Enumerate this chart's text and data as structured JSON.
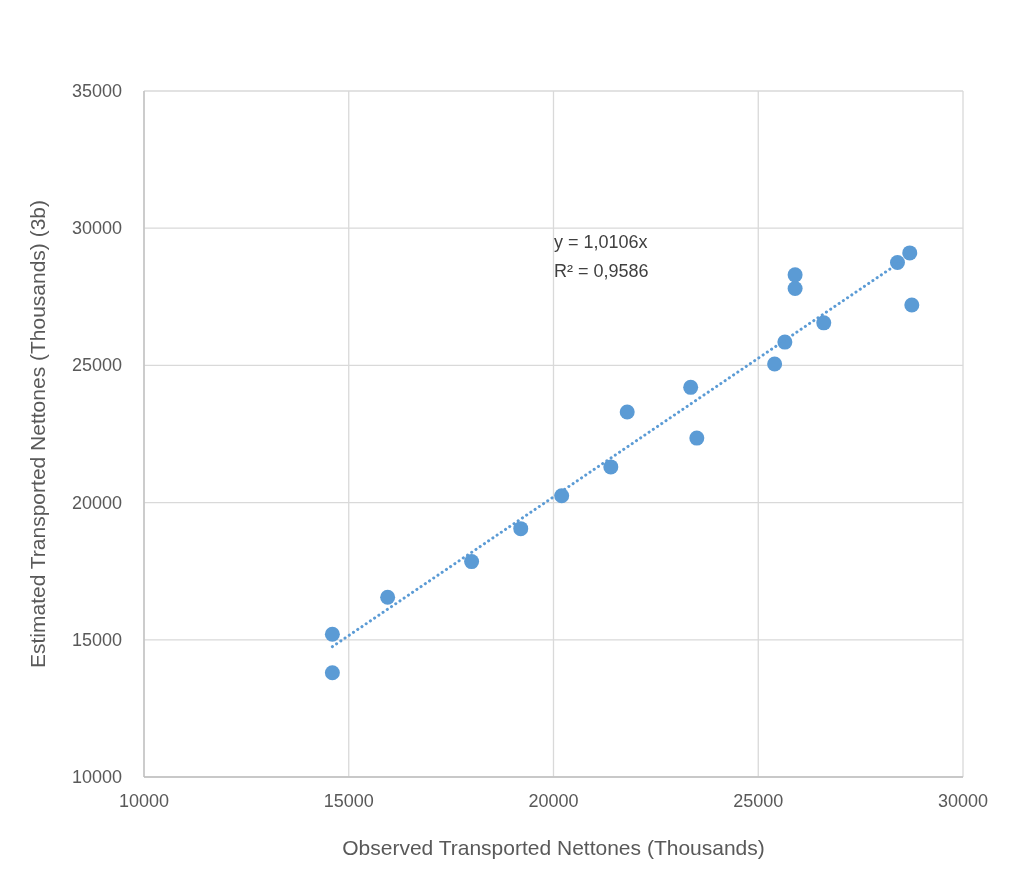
{
  "chart_data": {
    "type": "scatter",
    "xlabel": "Observed Transported Nettones (Thousands)",
    "ylabel": "Estimated Transported Nettones (Thousands)  (3b)",
    "xlim": [
      10000,
      30000
    ],
    "xticks": [
      10000,
      15000,
      20000,
      25000,
      30000
    ],
    "ylim": [
      10000,
      35000
    ],
    "yticks": [
      10000,
      15000,
      20000,
      25000,
      30000,
      35000
    ],
    "grid": true,
    "marker": "circle",
    "annotations": [
      "y = 1,0106x",
      "R² = 0,9586"
    ],
    "series": [
      {
        "color": "#5b9bd5",
        "x": [
          14600,
          14600,
          15950,
          18000,
          19200,
          20200,
          21400,
          21800,
          23350,
          23500,
          25400,
          25650,
          25900,
          25900,
          26600,
          28400,
          28700,
          28750
        ],
        "values": [
          15200,
          13800,
          16550,
          17850,
          19050,
          20250,
          21300,
          23300,
          24200,
          22350,
          25050,
          25850,
          28300,
          27800,
          26550,
          28750,
          29100,
          27200
        ]
      },
      {
        "type": "line",
        "line_style": "dotted",
        "marker": "none",
        "color": "#5b9bd5",
        "x": [
          14600,
          28700
        ],
        "values": [
          14750,
          29000
        ]
      }
    ]
  }
}
